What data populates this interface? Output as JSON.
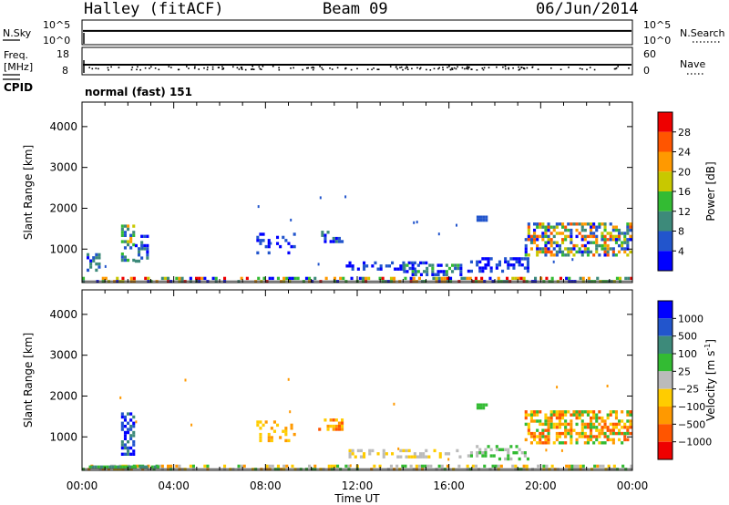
{
  "header": {
    "title": "Halley (fitACF)",
    "beam": "Beam 09",
    "date": "06/Jun/2014"
  },
  "top_panels": {
    "nsky": {
      "label": "N.Sky",
      "tick_top": "10^5",
      "tick_bottom": "10^0",
      "right_label": "N.Search",
      "right_tick_top": "10^5",
      "right_tick_bottom": "10^0",
      "level": 0.56
    },
    "freq": {
      "label_line1": "Freq.",
      "label_line2": "[MHz]",
      "tick_top": "18",
      "tick_bottom": "8",
      "right_label": "Nave",
      "right_tick_top": "60",
      "right_tick_bottom": "0",
      "freq_mhz": 12.5
    },
    "cpid": {
      "label": "CPID",
      "text": "normal (fast) 151"
    }
  },
  "chart_data": [
    {
      "type": "heatmap",
      "name": "power",
      "ylabel": "Slant Range [km]",
      "xlabel": "",
      "xlim": [
        0,
        24
      ],
      "ylim": [
        180,
        4600
      ],
      "x_ticks": [
        "00:00",
        "04:00",
        "08:00",
        "12:00",
        "16:00",
        "20:00",
        "00:00"
      ],
      "y_ticks": [
        1000,
        2000,
        3000,
        4000
      ],
      "colorbar": {
        "label": "Power [dB]",
        "ticks": [
          "4",
          "8",
          "12",
          "16",
          "20",
          "24",
          "28"
        ],
        "colors": [
          "#0000ff",
          "#2255cc",
          "#3d8a7a",
          "#33bb33",
          "#c8c800",
          "#ff9900",
          "#ff5500",
          "#ee0000"
        ]
      },
      "scatter_regions": [
        {
          "t": [
            0.0,
            24.0
          ],
          "r": [
            200,
            320
          ],
          "density": 0.45,
          "colors": [
            "#33bb33",
            "#ff9900",
            "#ee0000",
            "#c8c800",
            "#3d8a7a",
            "#0000ff"
          ]
        },
        {
          "t": [
            0.2,
            0.8
          ],
          "r": [
            450,
            900
          ],
          "density": 0.35,
          "colors": [
            "#0000ff",
            "#2255cc",
            "#3d8a7a"
          ]
        },
        {
          "t": [
            1.7,
            2.2
          ],
          "r": [
            600,
            1600
          ],
          "density": 0.5,
          "colors": [
            "#2255cc",
            "#3d8a7a",
            "#33bb33",
            "#c8c800",
            "#ff9900"
          ]
        },
        {
          "t": [
            2.3,
            2.9
          ],
          "r": [
            650,
            1350
          ],
          "density": 0.35,
          "colors": [
            "#2255cc",
            "#0000ff",
            "#3d8a7a"
          ]
        },
        {
          "t": [
            7.6,
            9.3
          ],
          "r": [
            900,
            1400
          ],
          "density": 0.25,
          "colors": [
            "#0000ff",
            "#2255cc"
          ]
        },
        {
          "t": [
            10.3,
            11.3
          ],
          "r": [
            1150,
            1450
          ],
          "density": 0.55,
          "colors": [
            "#0000ff",
            "#2255cc",
            "#3d8a7a"
          ]
        },
        {
          "t": [
            11.5,
            15.0
          ],
          "r": [
            480,
            700
          ],
          "density": 0.3,
          "colors": [
            "#0000ff",
            "#2255cc"
          ]
        },
        {
          "t": [
            14.0,
            16.5
          ],
          "r": [
            400,
            640
          ],
          "density": 0.55,
          "colors": [
            "#0000ff",
            "#2255cc",
            "#3d8a7a",
            "#33bb33"
          ]
        },
        {
          "t": [
            16.8,
            19.5
          ],
          "r": [
            450,
            800
          ],
          "density": 0.4,
          "colors": [
            "#0000ff",
            "#2255cc"
          ]
        },
        {
          "t": [
            17.2,
            17.6
          ],
          "r": [
            1720,
            1820
          ],
          "density": 0.9,
          "colors": [
            "#2255cc"
          ]
        },
        {
          "t": [
            19.3,
            24.0
          ],
          "r": [
            850,
            1650
          ],
          "density": 0.55,
          "colors": [
            "#0000ff",
            "#2255cc",
            "#3d8a7a",
            "#33bb33",
            "#c8c800",
            "#ff9900",
            "#ff5500"
          ]
        }
      ]
    },
    {
      "type": "heatmap",
      "name": "velocity",
      "ylabel": "Slant Range [km]",
      "xlabel": "Time UT",
      "xlim": [
        0,
        24
      ],
      "ylim": [
        180,
        4600
      ],
      "x_ticks": [
        "00:00",
        "04:00",
        "08:00",
        "12:00",
        "16:00",
        "20:00",
        "00:00"
      ],
      "y_ticks": [
        1000,
        2000,
        3000,
        4000
      ],
      "colorbar": {
        "label": "Velocity [m s^-1]",
        "ticks": [
          "1000",
          "500",
          "100",
          "25",
          "−25",
          "−100",
          "−500",
          "−1000"
        ],
        "colors": [
          "#0000ff",
          "#2255cc",
          "#3d8a7a",
          "#33bb33",
          "#bbbbbb",
          "#ffcc00",
          "#ff9900",
          "#ff5500",
          "#ee0000"
        ]
      },
      "scatter_regions": [
        {
          "t": [
            0.0,
            24.0
          ],
          "r": [
            200,
            320
          ],
          "density": 0.45,
          "colors": [
            "#bbbbbb",
            "#ffcc00",
            "#ff9900",
            "#33bb33"
          ]
        },
        {
          "t": [
            0.3,
            3.3
          ],
          "r": [
            230,
            300
          ],
          "density": 0.9,
          "colors": [
            "#33bb33",
            "#3d8a7a"
          ]
        },
        {
          "t": [
            1.7,
            2.2
          ],
          "r": [
            600,
            1600
          ],
          "density": 0.5,
          "colors": [
            "#2255cc",
            "#3d8a7a",
            "#0000ff"
          ]
        },
        {
          "t": [
            7.6,
            9.3
          ],
          "r": [
            900,
            1400
          ],
          "density": 0.3,
          "colors": [
            "#ff9900",
            "#ffcc00"
          ]
        },
        {
          "t": [
            10.3,
            11.3
          ],
          "r": [
            1150,
            1450
          ],
          "density": 0.55,
          "colors": [
            "#ff9900",
            "#ff5500",
            "#ffcc00"
          ]
        },
        {
          "t": [
            11.5,
            16.5
          ],
          "r": [
            480,
            700
          ],
          "density": 0.4,
          "colors": [
            "#bbbbbb",
            "#ffcc00"
          ]
        },
        {
          "t": [
            16.8,
            19.5
          ],
          "r": [
            480,
            800
          ],
          "density": 0.35,
          "colors": [
            "#bbbbbb",
            "#33bb33"
          ]
        },
        {
          "t": [
            17.2,
            17.6
          ],
          "r": [
            1720,
            1820
          ],
          "density": 0.9,
          "colors": [
            "#33bb33"
          ]
        },
        {
          "t": [
            19.3,
            24.0
          ],
          "r": [
            850,
            1650
          ],
          "density": 0.55,
          "colors": [
            "#ff9900",
            "#ff5500",
            "#ffcc00",
            "#33bb33"
          ]
        }
      ]
    }
  ]
}
